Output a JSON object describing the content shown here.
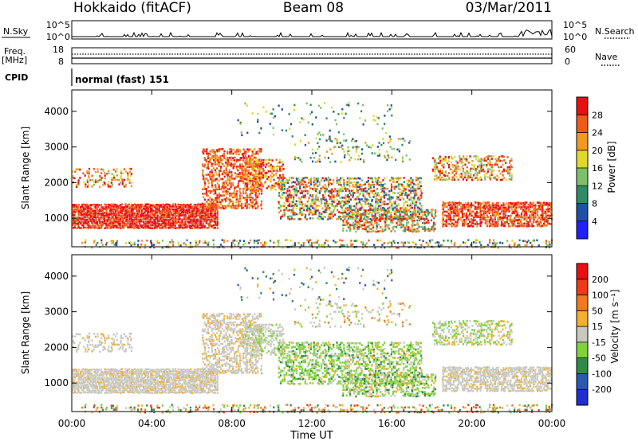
{
  "header": {
    "station": "Hokkaido (fitACF)",
    "beam": "Beam 08",
    "date": "03/Mar/2011"
  },
  "strip": {
    "nsky_label": "N.Sky",
    "nsky_ticks": [
      "10^5",
      "10^0"
    ],
    "nsearch_label": "N.Search",
    "nsearch_ticks": [
      "10^5",
      "10^0"
    ],
    "freq_label_top": "Freq.",
    "freq_label_unit": "[MHz]",
    "freq_ticks": [
      "18",
      "8"
    ],
    "nave_label": "Nave",
    "nave_ticks": [
      "60",
      "0"
    ],
    "cpid_label": "CPID",
    "cpid_text": "normal (fast) 151"
  },
  "chart_data": [
    {
      "type": "heatmap",
      "title": "",
      "xlabel": "",
      "ylabel": "Slant Range [km]",
      "ylim": [
        200,
        4600
      ],
      "x_ticks": [
        "00:00",
        "04:00",
        "08:00",
        "12:00",
        "16:00",
        "20:00",
        "00:00"
      ],
      "y_ticks": [
        "1000",
        "2000",
        "3000",
        "4000"
      ],
      "colorbar": {
        "label": "Power [dB]",
        "ticks": [
          "4",
          "8",
          "12",
          "16",
          "20",
          "24",
          "28"
        ],
        "colors": [
          "#1f1fff",
          "#1f4fa8",
          "#2f8a66",
          "#7ec06a",
          "#e0d82a",
          "#f09a20",
          "#f05a18",
          "#e81010"
        ]
      }
    },
    {
      "type": "heatmap",
      "title": "",
      "xlabel": "Time UT",
      "ylabel": "Slant Range [km]",
      "ylim": [
        200,
        4600
      ],
      "x_ticks": [
        "00:00",
        "04:00",
        "08:00",
        "12:00",
        "16:00",
        "20:00",
        "00:00"
      ],
      "y_ticks": [
        "1000",
        "2000",
        "3000",
        "4000"
      ],
      "colorbar": {
        "label": "Velocity [m s⁻¹]",
        "ticks": [
          "200",
          "100",
          "50",
          "15",
          "-15",
          "-50",
          "-100",
          "-200"
        ],
        "colors": [
          "#1f2fd0",
          "#2a5ab0",
          "#2f8a4a",
          "#7fd23a",
          "#c8c8c0",
          "#f0b030",
          "#f07a20",
          "#f03a18",
          "#e81010"
        ]
      }
    }
  ]
}
